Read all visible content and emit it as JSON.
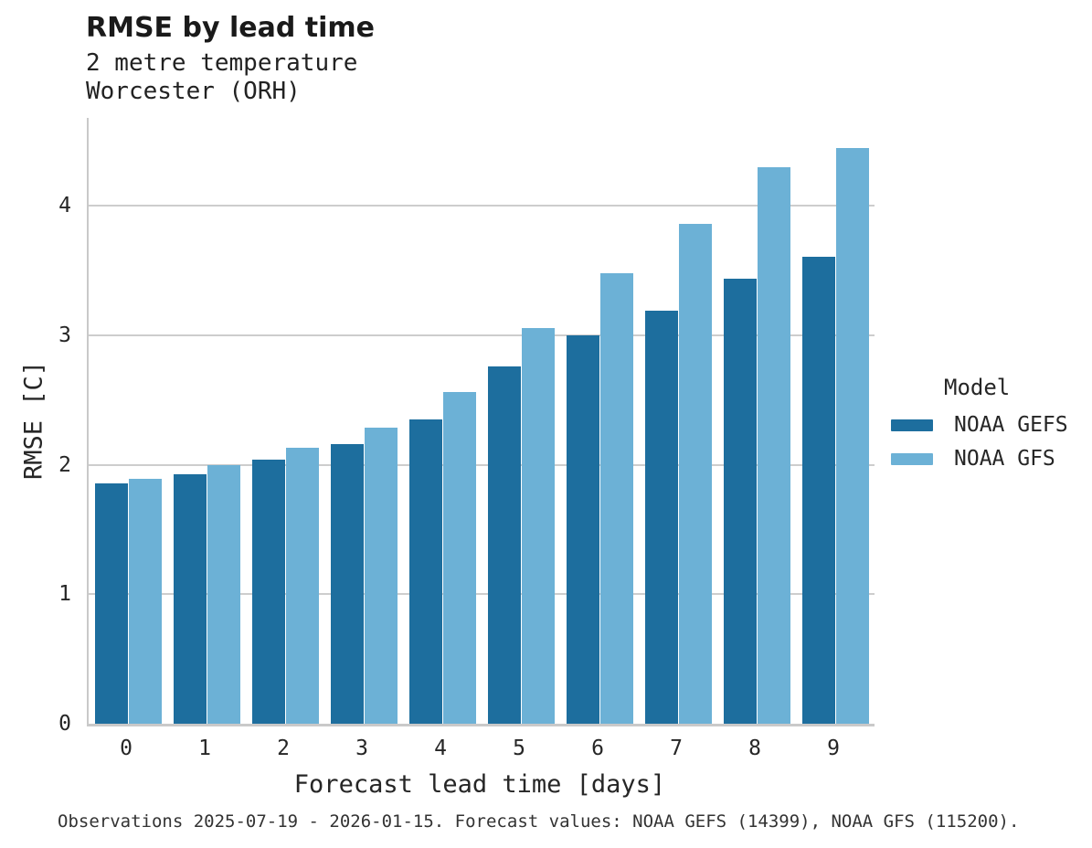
{
  "header": {
    "title": "RMSE by lead time",
    "subtitle_line1": "2 metre temperature",
    "subtitle_line2": "Worcester (ORH)"
  },
  "legend": {
    "title": "Model",
    "entries": [
      {
        "label": "NOAA GEFS",
        "color": "#1d6e9e"
      },
      {
        "label": "NOAA GFS",
        "color": "#6cb1d6"
      }
    ]
  },
  "footer": {
    "text": "Observations 2025-07-19 - 2026-01-15. Forecast values: NOAA GEFS (14399), NOAA GFS (115200)."
  },
  "colors": {
    "gefs_bar": "#1d6e9e",
    "gfs_bar": "#6cb1d6",
    "gridline": "#cdcdcd",
    "spine": "#c9c9c9",
    "text": "#262626"
  },
  "chart_data": {
    "type": "bar",
    "title": "RMSE by lead time",
    "subtitle": "2 metre temperature\nWorcester (ORH)",
    "xlabel": "Forecast lead time [days]",
    "ylabel": "RMSE [C]",
    "categories": [
      "0",
      "1",
      "2",
      "3",
      "4",
      "5",
      "6",
      "7",
      "8",
      "9"
    ],
    "series": [
      {
        "name": "NOAA GEFS",
        "color": "#1d6e9e",
        "values": [
          1.86,
          1.93,
          2.04,
          2.16,
          2.35,
          2.76,
          3.0,
          3.19,
          3.44,
          3.61
        ]
      },
      {
        "name": "NOAA GFS",
        "color": "#6cb1d6",
        "values": [
          1.89,
          2.0,
          2.13,
          2.29,
          2.56,
          3.06,
          3.48,
          3.86,
          4.3,
          4.45
        ]
      }
    ],
    "ylim": [
      0,
      4.68
    ],
    "yticks": [
      0,
      1,
      2,
      3,
      4
    ],
    "grid": true,
    "legend_title": "Model",
    "legend_position": "right",
    "caption": "Observations 2025-07-19 - 2026-01-15. Forecast values: NOAA GEFS (14399), NOAA GFS (115200)."
  }
}
